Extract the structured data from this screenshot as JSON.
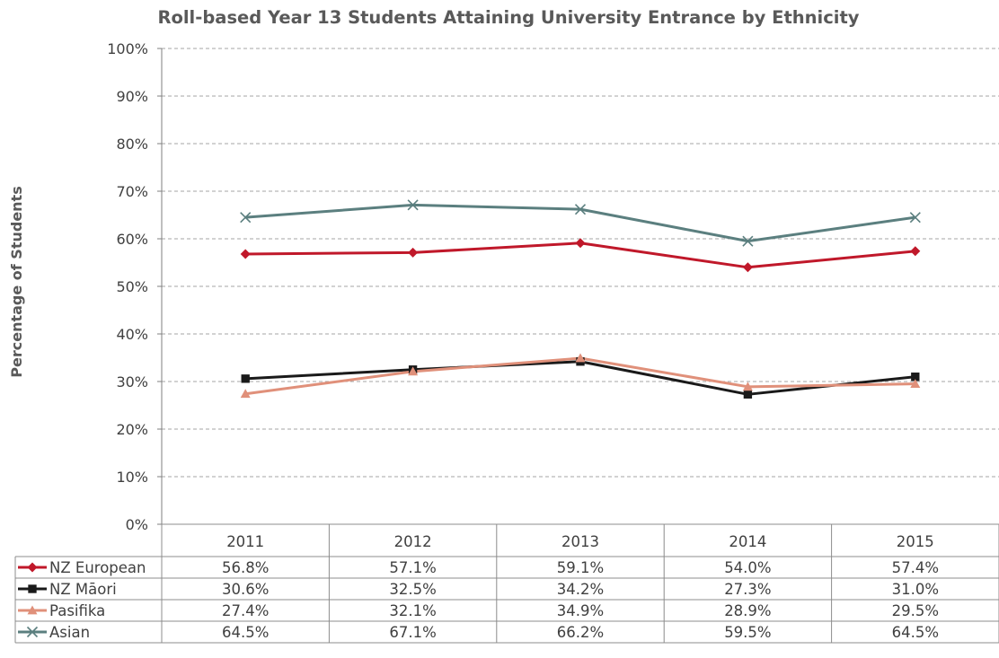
{
  "chart_data": {
    "type": "line",
    "title": "Roll-based Year 13 Students Attaining University Entrance by Ethnicity",
    "ylabel": "Percentage of Students",
    "xlabel": "",
    "categories": [
      "2011",
      "2012",
      "2013",
      "2014",
      "2015"
    ],
    "ylim": [
      0,
      100
    ],
    "y_ticks": [
      "0%",
      "10%",
      "20%",
      "30%",
      "40%",
      "50%",
      "60%",
      "70%",
      "80%",
      "90%",
      "100%"
    ],
    "grid": true,
    "legend": "data-table",
    "series": [
      {
        "name": "NZ European",
        "color": "#c0182a",
        "marker": "diamond",
        "values": [
          56.8,
          57.1,
          59.1,
          54.0,
          57.4
        ],
        "labels": [
          "56.8%",
          "57.1%",
          "59.1%",
          "54.0%",
          "57.4%"
        ]
      },
      {
        "name": "NZ Māori",
        "color": "#1a1a1a",
        "marker": "square",
        "values": [
          30.6,
          32.5,
          34.2,
          27.3,
          31.0
        ],
        "labels": [
          "30.6%",
          "32.5%",
          "34.2%",
          "27.3%",
          "31.0%"
        ]
      },
      {
        "name": "Pasifika",
        "color": "#e0907a",
        "marker": "triangle",
        "values": [
          27.4,
          32.1,
          34.9,
          28.9,
          29.5
        ],
        "labels": [
          "27.4%",
          "32.1%",
          "34.9%",
          "28.9%",
          "29.5%"
        ]
      },
      {
        "name": "Asian",
        "color": "#5b7f7f",
        "marker": "x",
        "values": [
          64.5,
          67.1,
          66.2,
          59.5,
          64.5
        ],
        "labels": [
          "64.5%",
          "67.1%",
          "66.2%",
          "59.5%",
          "64.5%"
        ]
      }
    ]
  }
}
